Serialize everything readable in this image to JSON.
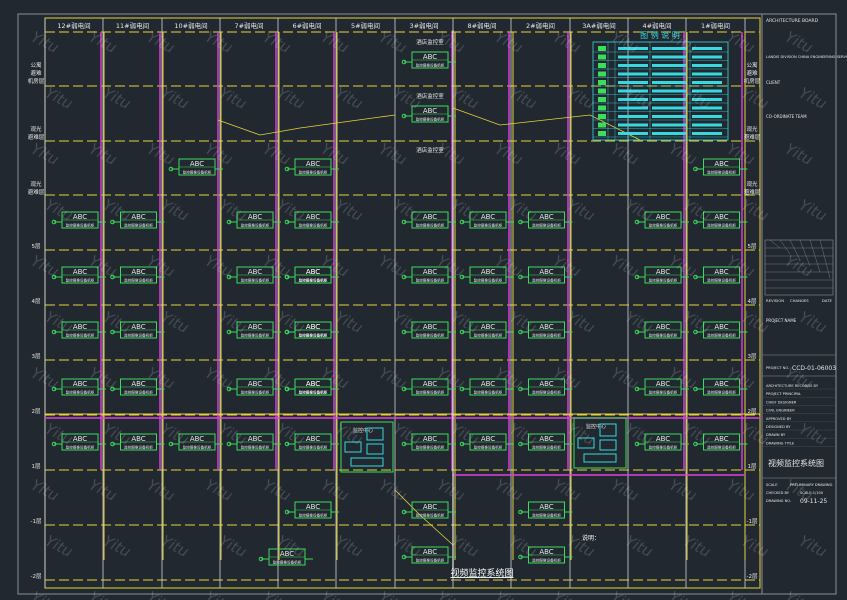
{
  "columns": [
    "12#弱电间",
    "11#弱电间",
    "10#弱电间",
    "7#弱电间",
    "6#弱电间",
    "5#弱电间",
    "3#弱电间",
    "8#弱电间",
    "2#弱电间",
    "3A#弱电间",
    "4#弱电间",
    "1#弱电间"
  ],
  "floors": [
    "公寓\n避难\n机房层",
    "观光\n避难层",
    "观光\n避难层",
    "5层",
    "4层",
    "3层",
    "2层",
    "1层",
    "-1层",
    "-2层"
  ],
  "device_label": "ABC",
  "device_sub": "监控摄像设备机柜",
  "room_labels": [
    "酒店监控室",
    "酒店监控室",
    "酒店监控室"
  ],
  "control_room_label": "监控中心",
  "legend": {
    "title": "图 例 说 明",
    "rows": 11
  },
  "note_label": "说明：",
  "diagram_title": "视频监控系统图",
  "title_block": {
    "project_top": "ARCHITECTURE BOARD",
    "project_line": "LANDIS DIVISION CHINA ENGINEERING SERVICES CO.,LTD",
    "client": "CLIENT",
    "project_name": "CO-ORDINATE TEAM",
    "revision": "REVISION",
    "changes": "CHANGES",
    "date": "DATE",
    "project_name2": "PROJECT NAME",
    "project_no_label": "PROJECT NO.",
    "project_no": "CCD-01-06003",
    "info_rows": [
      "ARCHITECTURE RECORDS BY",
      "PROJECT PRINCIPAL",
      "CHIEF DESIGNER",
      "CIVIL ENGINEER",
      "APPROVED BY",
      "DESIGNED BY",
      "DRAWN BY",
      "DRAWING TITLE"
    ],
    "drawing_title": "视频监控系统图",
    "scale_label": "SCALE",
    "scale_value": "PRELIMINARY DRAWING",
    "checked": "CHECKED BY",
    "scale_note": "SCALE:1/100",
    "drawing_no_label": "DRAWING NO.",
    "date_value": "09-11-25"
  },
  "watermark": "Yitu"
}
